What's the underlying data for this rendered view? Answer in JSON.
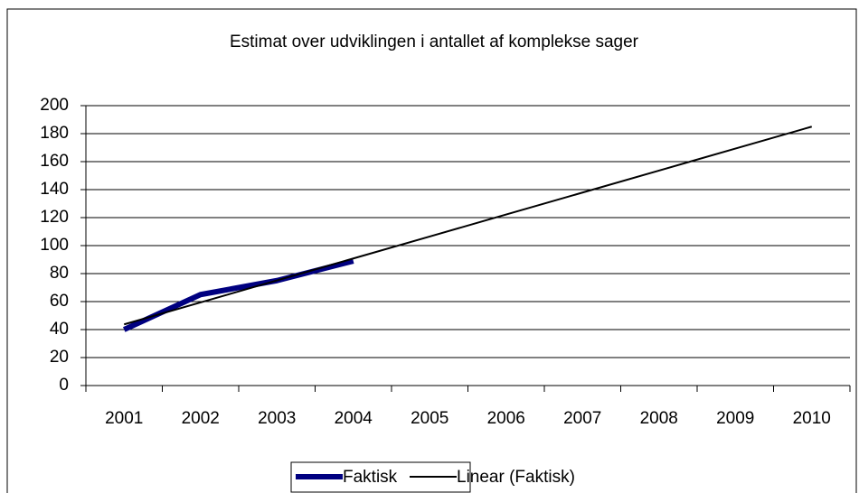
{
  "chart_data": {
    "type": "line",
    "title": "Estimat over udviklingen i antallet af komplekse sager",
    "categories": [
      "2001",
      "2002",
      "2003",
      "2004",
      "2005",
      "2006",
      "2007",
      "2008",
      "2009",
      "2010"
    ],
    "series": [
      {
        "name": "Faktisk",
        "color": "#000080",
        "values": [
          40,
          65,
          75,
          89,
          null,
          null,
          null,
          null,
          null,
          null
        ]
      },
      {
        "name": "Linear (Faktisk)",
        "color": "#000000",
        "values": [
          43.7,
          59.4,
          75.1,
          90.8,
          106.5,
          122.2,
          137.9,
          153.6,
          169.3,
          185
        ]
      }
    ],
    "ylim": [
      0,
      200
    ],
    "yticks": [
      0,
      20,
      40,
      60,
      80,
      100,
      120,
      140,
      160,
      180,
      200
    ],
    "grid": true
  }
}
